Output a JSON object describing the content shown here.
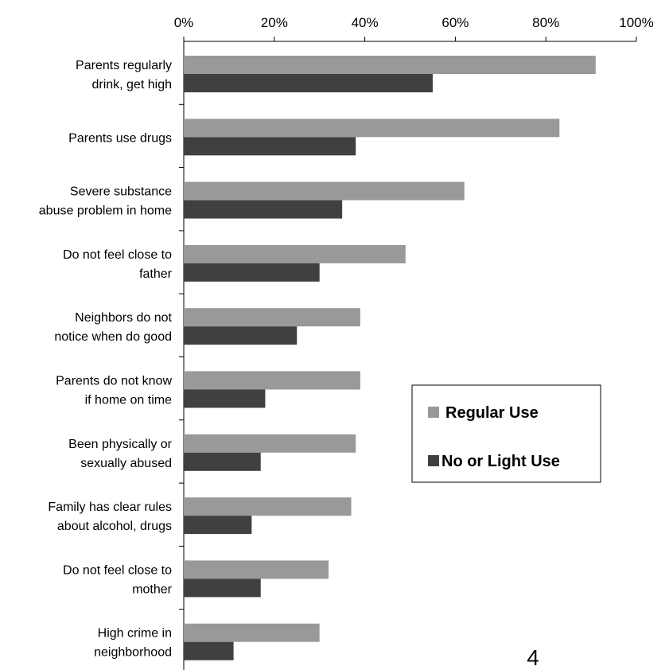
{
  "chart_data": {
    "type": "bar",
    "orientation": "horizontal",
    "categories": [
      [
        "Parents regularly",
        "drink, get high"
      ],
      [
        "Parents use drugs"
      ],
      [
        "Severe substance",
        "abuse problem in home"
      ],
      [
        "Do not feel close to",
        "father"
      ],
      [
        "Neighbors do not",
        "notice when do good"
      ],
      [
        "Parents do not know",
        "if home on time"
      ],
      [
        "Been physically or",
        "sexually abused"
      ],
      [
        "Family has clear rules",
        "about alcohol, drugs"
      ],
      [
        "Do not feel close to",
        "mother"
      ],
      [
        "High crime in",
        "neighborhood"
      ]
    ],
    "series": [
      {
        "name": "Regular Use",
        "color": "#999999",
        "values": [
          91,
          83,
          62,
          49,
          39,
          39,
          38,
          37,
          32,
          30
        ]
      },
      {
        "name": "No or Light Use",
        "color": "#404040",
        "values": [
          55,
          38,
          35,
          30,
          25,
          18,
          17,
          15,
          17,
          11
        ]
      }
    ],
    "x_ticks": [
      "0%",
      "20%",
      "40%",
      "60%",
      "80%",
      "100%"
    ],
    "xlim": [
      0,
      100
    ],
    "axis_position": "top",
    "grid": false,
    "legend_position": "right"
  },
  "page_number": "4"
}
